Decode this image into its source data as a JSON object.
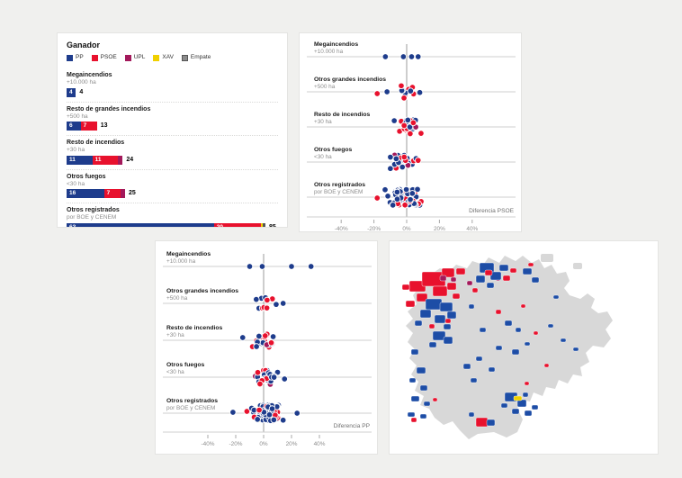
{
  "palette": {
    "PP": "#1e3c8c",
    "PSOE": "#e8112d",
    "UPL": "#a3195b",
    "XAV": "#f0d000",
    "EMP": "#555555",
    "EMP_light": "#8c8c8c",
    "map_PP": "#1d4da6",
    "map_base": "#d8d8d8",
    "page_bg": "#f0f0ee",
    "card_bg": "#ffffff",
    "grid": "#cfcfcf",
    "zero_line": "#9b9b9b",
    "text": "#1a1a1a",
    "text_muted": "#8e8e8e"
  },
  "chart_data": [
    {
      "type": "bar",
      "title": "Ganador",
      "legend": [
        {
          "party": "PP",
          "label": "PP"
        },
        {
          "party": "PSOE",
          "label": "PSOE"
        },
        {
          "party": "UPL",
          "label": "UPL"
        },
        {
          "party": "XAV",
          "label": "XAV"
        },
        {
          "party": "EMP",
          "label": "Empate"
        }
      ],
      "rows": [
        {
          "label": "Megaincendios",
          "sublabel": "+10.000 ha",
          "total": 4,
          "segments": [
            {
              "party": "PP",
              "value": 4
            }
          ]
        },
        {
          "label": "Resto de grandes incendios",
          "sublabel": "+500 ha",
          "total": 13,
          "segments": [
            {
              "party": "PP",
              "value": 6
            },
            {
              "party": "PSOE",
              "value": 7
            }
          ]
        },
        {
          "label": "Resto de incendios",
          "sublabel": "+30 ha",
          "total": 24,
          "segments": [
            {
              "party": "PP",
              "value": 11
            },
            {
              "party": "PSOE",
              "value": 11
            },
            {
              "party": "UPL",
              "value": 2
            }
          ]
        },
        {
          "label": "Otros fuegos",
          "sublabel": "<30 ha",
          "total": 25,
          "segments": [
            {
              "party": "PP",
              "value": 16
            },
            {
              "party": "PSOE",
              "value": 7
            },
            {
              "party": "UPL",
              "value": 2
            }
          ]
        },
        {
          "label": "Otros registrados",
          "sublabel": "por BOE y CENEM",
          "total": 85,
          "segments": [
            {
              "party": "PP",
              "value": 63
            },
            {
              "party": "PSOE",
              "value": 20
            },
            {
              "party": "XAV",
              "value": 1
            },
            {
              "party": "EMP",
              "value": 1
            }
          ]
        }
      ]
    },
    {
      "type": "scatter",
      "variant": "beeswarm",
      "xlabel": "Diferencia PSOE",
      "xlim": [
        -55,
        60
      ],
      "ticks": [
        {
          "pct": -40,
          "label": "-40%"
        },
        {
          "pct": -20,
          "label": "-20%"
        },
        {
          "pct": 0,
          "label": "0%"
        },
        {
          "pct": 20,
          "label": "20%"
        },
        {
          "pct": 40,
          "label": "40%"
        }
      ],
      "rows": [
        {
          "label": "Megaincendios",
          "sublabel": "+10.000 ha",
          "dots": [
            [
              -13,
              0,
              "PP"
            ],
            [
              -2,
              0,
              "PP"
            ],
            [
              3,
              0,
              "PP"
            ],
            [
              7,
              0,
              "PP"
            ]
          ]
        },
        {
          "label": "Otros grandes incendios",
          "sublabel": "+500 ha",
          "dots": [
            [
              -18,
              2,
              "PSOE"
            ],
            [
              -12,
              0,
              "PP"
            ]
          ],
          "cluster": {
            "counts": {
              "PP": 5,
              "PSOE": 6
            },
            "mean": 2,
            "sd": 3.5,
            "clip": [
              -8,
              10
            ],
            "dy": 7
          }
        },
        {
          "label": "Resto de incendios",
          "sublabel": "+30 ha",
          "dots": [],
          "cluster": {
            "counts": {
              "PP": 11,
              "PSOE": 11,
              "UPL": 2
            },
            "mean": 0,
            "sd": 3.5,
            "clip": [
              -10,
              9
            ],
            "dy": 8
          }
        },
        {
          "label": "Otros fuegos",
          "sublabel": "<30 ha",
          "dots": [],
          "cluster": {
            "counts": {
              "PP": 16,
              "PSOE": 7,
              "UPL": 2
            },
            "mean": -1,
            "sd": 3.5,
            "clip": [
              -11,
              7
            ],
            "dy": 8
          }
        },
        {
          "label": "Otros registrados",
          "sublabel": "por BOE y CENEM",
          "dots": [
            [
              -18,
              1,
              "PSOE"
            ]
          ],
          "cluster": {
            "counts": {
              "PP": 63,
              "PSOE": 19,
              "XAV": 1,
              "EMP": 1
            },
            "mean": -2,
            "sd": 4.5,
            "clip": [
              -14,
              11
            ],
            "dy": 9
          }
        }
      ]
    },
    {
      "type": "scatter",
      "variant": "beeswarm",
      "xlabel": "Diferencia PP",
      "xlim": [
        -55,
        60
      ],
      "ticks": [
        {
          "pct": -40,
          "label": "-40%"
        },
        {
          "pct": -20,
          "label": "-20%"
        },
        {
          "pct": 0,
          "label": "0%"
        },
        {
          "pct": 20,
          "label": "20%"
        },
        {
          "pct": 40,
          "label": "40%"
        }
      ],
      "rows": [
        {
          "label": "Megaincendios",
          "sublabel": "+10.000 ha",
          "dots": [
            [
              -10,
              0,
              "PP"
            ],
            [
              -1,
              0,
              "PP"
            ],
            [
              20,
              0,
              "PP"
            ],
            [
              34,
              0,
              "PP"
            ]
          ]
        },
        {
          "label": "Otros grandes incendios",
          "sublabel": "+500 ha",
          "dots": [
            [
              14,
              0,
              "PP"
            ]
          ],
          "cluster": {
            "counts": {
              "PP": 5,
              "PSOE": 7
            },
            "mean": 1,
            "sd": 3.5,
            "clip": [
              -7,
              9
            ],
            "dy": 7
          }
        },
        {
          "label": "Resto de incendios",
          "sublabel": "+30 ha",
          "dots": [
            [
              -15,
              -3,
              "PP"
            ]
          ],
          "cluster": {
            "counts": {
              "PP": 10,
              "PSOE": 11,
              "UPL": 2
            },
            "mean": 1,
            "sd": 3.5,
            "clip": [
              -8,
              10
            ],
            "dy": 8
          }
        },
        {
          "label": "Otros fuegos",
          "sublabel": "<30 ha",
          "dots": [
            [
              15,
              2,
              "PP"
            ],
            [
              -6,
              -1,
              "UPL"
            ]
          ],
          "cluster": {
            "counts": {
              "PP": 15,
              "PSOE": 7,
              "UPL": 1
            },
            "mean": 2,
            "sd": 3.5,
            "clip": [
              -6,
              10
            ],
            "dy": 8
          }
        },
        {
          "label": "Otros registrados",
          "sublabel": "por BOE y CENEM",
          "dots": [
            [
              -22,
              -1,
              "PP"
            ],
            [
              -12,
              -2,
              "PSOE"
            ],
            [
              24,
              0,
              "PP"
            ]
          ],
          "cluster": {
            "counts": {
              "PP": 61,
              "PSOE": 19,
              "XAV": 1,
              "EMP": 1
            },
            "mean": 2,
            "sd": 5,
            "clip": [
              -10,
              14
            ],
            "dy": 9
          }
        }
      ]
    },
    {
      "type": "map",
      "description": "choropleth of municipalities colored by winning party over a gray region silhouette",
      "blobs": [
        [
          22,
          44,
          18,
          12,
          "PSOE"
        ],
        [
          36,
          34,
          26,
          16,
          "PSOE"
        ],
        [
          58,
          30,
          14,
          10,
          "PSOE"
        ],
        [
          48,
          50,
          16,
          11,
          "PSOE"
        ],
        [
          30,
          58,
          12,
          9,
          "PSOE"
        ],
        [
          64,
          46,
          10,
          8,
          "PSOE"
        ],
        [
          74,
          30,
          10,
          7,
          "PSOE"
        ],
        [
          18,
          66,
          10,
          7,
          "PSOE"
        ],
        [
          70,
          58,
          8,
          6,
          "PSOE"
        ],
        [
          14,
          48,
          8,
          6,
          "PSOE"
        ],
        [
          56,
          38,
          7,
          6,
          "UPL"
        ],
        [
          68,
          40,
          6,
          5,
          "UPL"
        ],
        [
          86,
          44,
          6,
          5,
          "UPL"
        ],
        [
          118,
          40,
          5,
          4,
          "UPL"
        ],
        [
          40,
          64,
          18,
          12,
          "PP"
        ],
        [
          56,
          68,
          14,
          10,
          "PP"
        ],
        [
          34,
          76,
          12,
          9,
          "PP"
        ],
        [
          50,
          82,
          12,
          9,
          "PP"
        ],
        [
          64,
          78,
          10,
          8,
          "PP"
        ],
        [
          28,
          88,
          8,
          6,
          "PP"
        ],
        [
          60,
          92,
          8,
          6,
          "PP"
        ],
        [
          48,
          100,
          14,
          10,
          "PP"
        ],
        [
          60,
          106,
          10,
          8,
          "PP"
        ],
        [
          44,
          112,
          8,
          6,
          "PP"
        ],
        [
          62,
          86,
          6,
          5,
          "PSOE"
        ],
        [
          44,
          92,
          6,
          5,
          "PSOE"
        ],
        [
          100,
          24,
          16,
          11,
          "PP"
        ],
        [
          112,
          34,
          12,
          9,
          "PP"
        ],
        [
          96,
          38,
          10,
          8,
          "PP"
        ],
        [
          122,
          26,
          10,
          7,
          "PP"
        ],
        [
          108,
          46,
          8,
          6,
          "PP"
        ],
        [
          106,
          32,
          8,
          6,
          "PSOE"
        ],
        [
          126,
          38,
          8,
          6,
          "PSOE"
        ],
        [
          134,
          30,
          7,
          5,
          "PSOE"
        ],
        [
          92,
          52,
          6,
          5,
          "PSOE"
        ],
        [
          154,
          24,
          6,
          4,
          "PSOE"
        ],
        [
          148,
          30,
          10,
          7,
          "PP"
        ],
        [
          158,
          40,
          8,
          6,
          "PP"
        ],
        [
          182,
          60,
          6,
          4,
          "PP"
        ],
        [
          88,
          70,
          6,
          5,
          "PP"
        ],
        [
          100,
          96,
          7,
          5,
          "PP"
        ],
        [
          128,
          88,
          8,
          6,
          "PP"
        ],
        [
          140,
          96,
          6,
          5,
          "PP"
        ],
        [
          118,
          116,
          7,
          5,
          "PP"
        ],
        [
          136,
          120,
          8,
          6,
          "PP"
        ],
        [
          150,
          112,
          6,
          4,
          "PP"
        ],
        [
          96,
          128,
          7,
          5,
          "PP"
        ],
        [
          82,
          136,
          8,
          6,
          "PP"
        ],
        [
          110,
          140,
          7,
          5,
          "PP"
        ],
        [
          90,
          152,
          7,
          5,
          "PP"
        ],
        [
          118,
          76,
          6,
          5,
          "PSOE"
        ],
        [
          146,
          70,
          5,
          4,
          "PSOE"
        ],
        [
          160,
          100,
          5,
          4,
          "PSOE"
        ],
        [
          172,
          136,
          5,
          4,
          "PSOE"
        ],
        [
          150,
          156,
          5,
          4,
          "PSOE"
        ],
        [
          176,
          92,
          6,
          4,
          "PP"
        ],
        [
          190,
          108,
          6,
          4,
          "PP"
        ],
        [
          204,
          118,
          6,
          4,
          "PP"
        ],
        [
          24,
          120,
          8,
          6,
          "PP"
        ],
        [
          30,
          140,
          10,
          7,
          "PP"
        ],
        [
          22,
          152,
          7,
          5,
          "PP"
        ],
        [
          34,
          160,
          8,
          6,
          "PP"
        ],
        [
          24,
          172,
          9,
          6,
          "PP"
        ],
        [
          38,
          178,
          7,
          5,
          "PP"
        ],
        [
          20,
          190,
          8,
          5,
          "PP"
        ],
        [
          34,
          192,
          7,
          5,
          "PP"
        ],
        [
          48,
          174,
          5,
          4,
          "PSOE"
        ],
        [
          128,
          168,
          14,
          10,
          "PP"
        ],
        [
          142,
          176,
          10,
          8,
          "PP"
        ],
        [
          136,
          186,
          8,
          6,
          "PP"
        ],
        [
          150,
          188,
          8,
          6,
          "PP"
        ],
        [
          124,
          180,
          7,
          5,
          "PP"
        ],
        [
          158,
          182,
          7,
          5,
          "PP"
        ],
        [
          148,
          168,
          6,
          5,
          "PP"
        ],
        [
          138,
          172,
          9,
          5,
          "XAV"
        ],
        [
          96,
          196,
          13,
          10,
          "PSOE"
        ],
        [
          108,
          198,
          9,
          7,
          "PP"
        ],
        [
          88,
          190,
          6,
          5,
          "PP"
        ],
        [
          24,
          196,
          6,
          5,
          "PSOE"
        ]
      ]
    }
  ]
}
